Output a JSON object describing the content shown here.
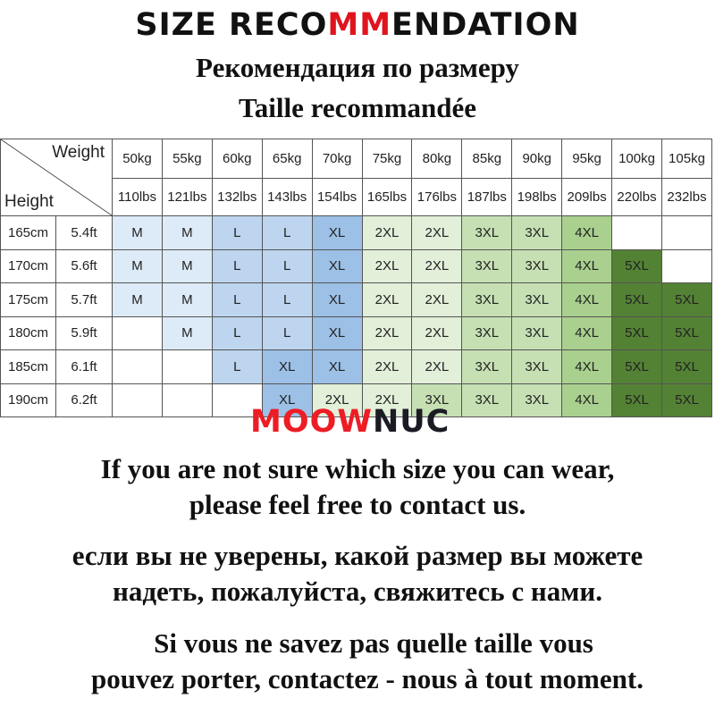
{
  "title": {
    "part1": "SIZE RECO",
    "part2": "MM",
    "part3": "ENDATION"
  },
  "subtitle_ru": "Рекомендация по размеру",
  "subtitle_fr": "Taille recommandée",
  "table": {
    "weight_label": "Weight",
    "height_label": "Height",
    "kg": [
      "50kg",
      "55kg",
      "60kg",
      "65kg",
      "70kg",
      "75kg",
      "80kg",
      "85kg",
      "90kg",
      "95kg",
      "100kg",
      "105kg"
    ],
    "lbs": [
      "110lbs",
      "121lbs",
      "132lbs",
      "143lbs",
      "154lbs",
      "165lbs",
      "176lbs",
      "187lbs",
      "198lbs",
      "209lbs",
      "220lbs",
      "232lbs"
    ],
    "rows": [
      {
        "cm": "165cm",
        "ft": "5.4ft",
        "sizes": [
          "M",
          "M",
          "L",
          "L",
          "XL",
          "2XL",
          "2XL",
          "3XL",
          "3XL",
          "4XL",
          "",
          ""
        ]
      },
      {
        "cm": "170cm",
        "ft": "5.6ft",
        "sizes": [
          "M",
          "M",
          "L",
          "L",
          "XL",
          "2XL",
          "2XL",
          "3XL",
          "3XL",
          "4XL",
          "5XL",
          ""
        ]
      },
      {
        "cm": "175cm",
        "ft": "5.7ft",
        "sizes": [
          "M",
          "M",
          "L",
          "L",
          "XL",
          "2XL",
          "2XL",
          "3XL",
          "3XL",
          "4XL",
          "5XL",
          "5XL"
        ]
      },
      {
        "cm": "180cm",
        "ft": "5.9ft",
        "sizes": [
          "",
          "M",
          "L",
          "L",
          "XL",
          "2XL",
          "2XL",
          "3XL",
          "3XL",
          "4XL",
          "5XL",
          "5XL"
        ]
      },
      {
        "cm": "185cm",
        "ft": "6.1ft",
        "sizes": [
          "",
          "",
          "L",
          "XL",
          "XL",
          "2XL",
          "2XL",
          "3XL",
          "3XL",
          "4XL",
          "5XL",
          "5XL"
        ]
      },
      {
        "cm": "190cm",
        "ft": "6.2ft",
        "sizes": [
          "",
          "",
          "",
          "XL",
          "2XL",
          "2XL",
          "3XL",
          "3XL",
          "3XL",
          "4XL",
          "5XL",
          "5XL"
        ]
      }
    ]
  },
  "size_colors": {
    "M": "#ddeaf7",
    "L": "#bdd5ee",
    "XL": "#9cc0e6",
    "2XL": "#e2efd9",
    "3XL": "#c6e0b4",
    "4XL": "#a9d08e",
    "5XL": "#548235"
  },
  "logo": {
    "part1": "MOO",
    "part2": "W",
    "part3": "NUC"
  },
  "message_en": [
    "If you are not sure which size you can wear,",
    "please feel free to contact us."
  ],
  "message_ru": [
    "если вы не уверены, какой размер вы можете",
    "надеть, пожалуйста, свяжитесь с нами."
  ],
  "message_fr": [
    "Si vous ne savez pas quelle taille vous",
    "pouvez porter, contactez - nous à tout moment."
  ]
}
